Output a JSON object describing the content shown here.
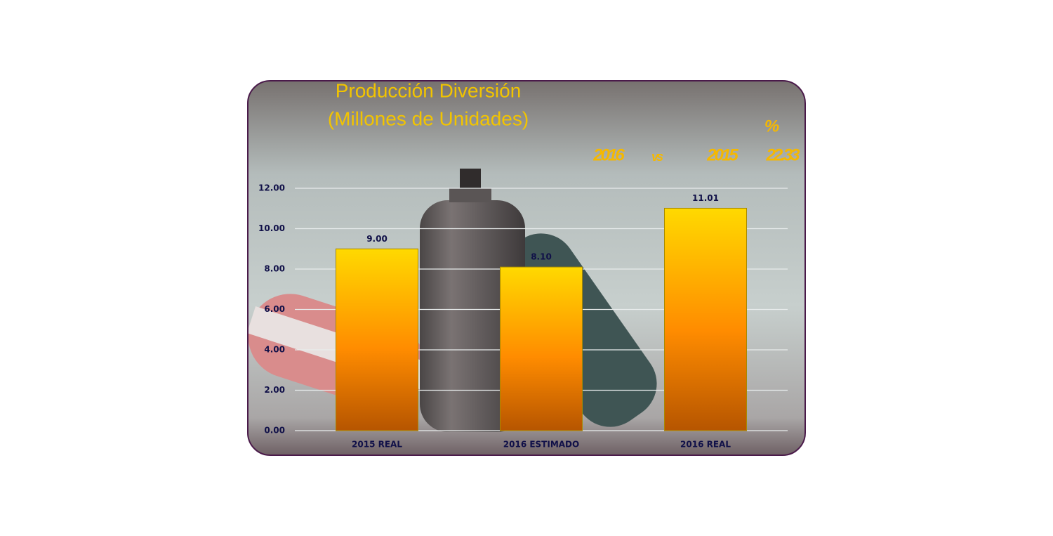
{
  "chart_data": {
    "type": "bar",
    "title": "Producción Diversión",
    "subtitle": "(Millones de Unidades)",
    "annotations": [
      "%",
      "2016",
      "vs",
      "2015",
      "22.33"
    ],
    "categories": [
      "2015 REAL",
      "2016 ESTIMADO",
      "2016 REAL"
    ],
    "values": [
      9.0,
      8.1,
      11.01
    ],
    "value_labels": [
      "9.00",
      "8.10",
      "11.01"
    ],
    "color": "#ff9900",
    "ylim": [
      0,
      12
    ],
    "yticks": [
      {
        "value": 0,
        "label": "0.00"
      },
      {
        "value": 2,
        "label": "2.00"
      },
      {
        "value": 4,
        "label": "4.00"
      },
      {
        "value": 6,
        "label": "6.00"
      },
      {
        "value": 8,
        "label": "8.00"
      },
      {
        "value": 10,
        "label": "10.00"
      },
      {
        "value": 12,
        "label": "12.00"
      }
    ],
    "grid": true
  }
}
